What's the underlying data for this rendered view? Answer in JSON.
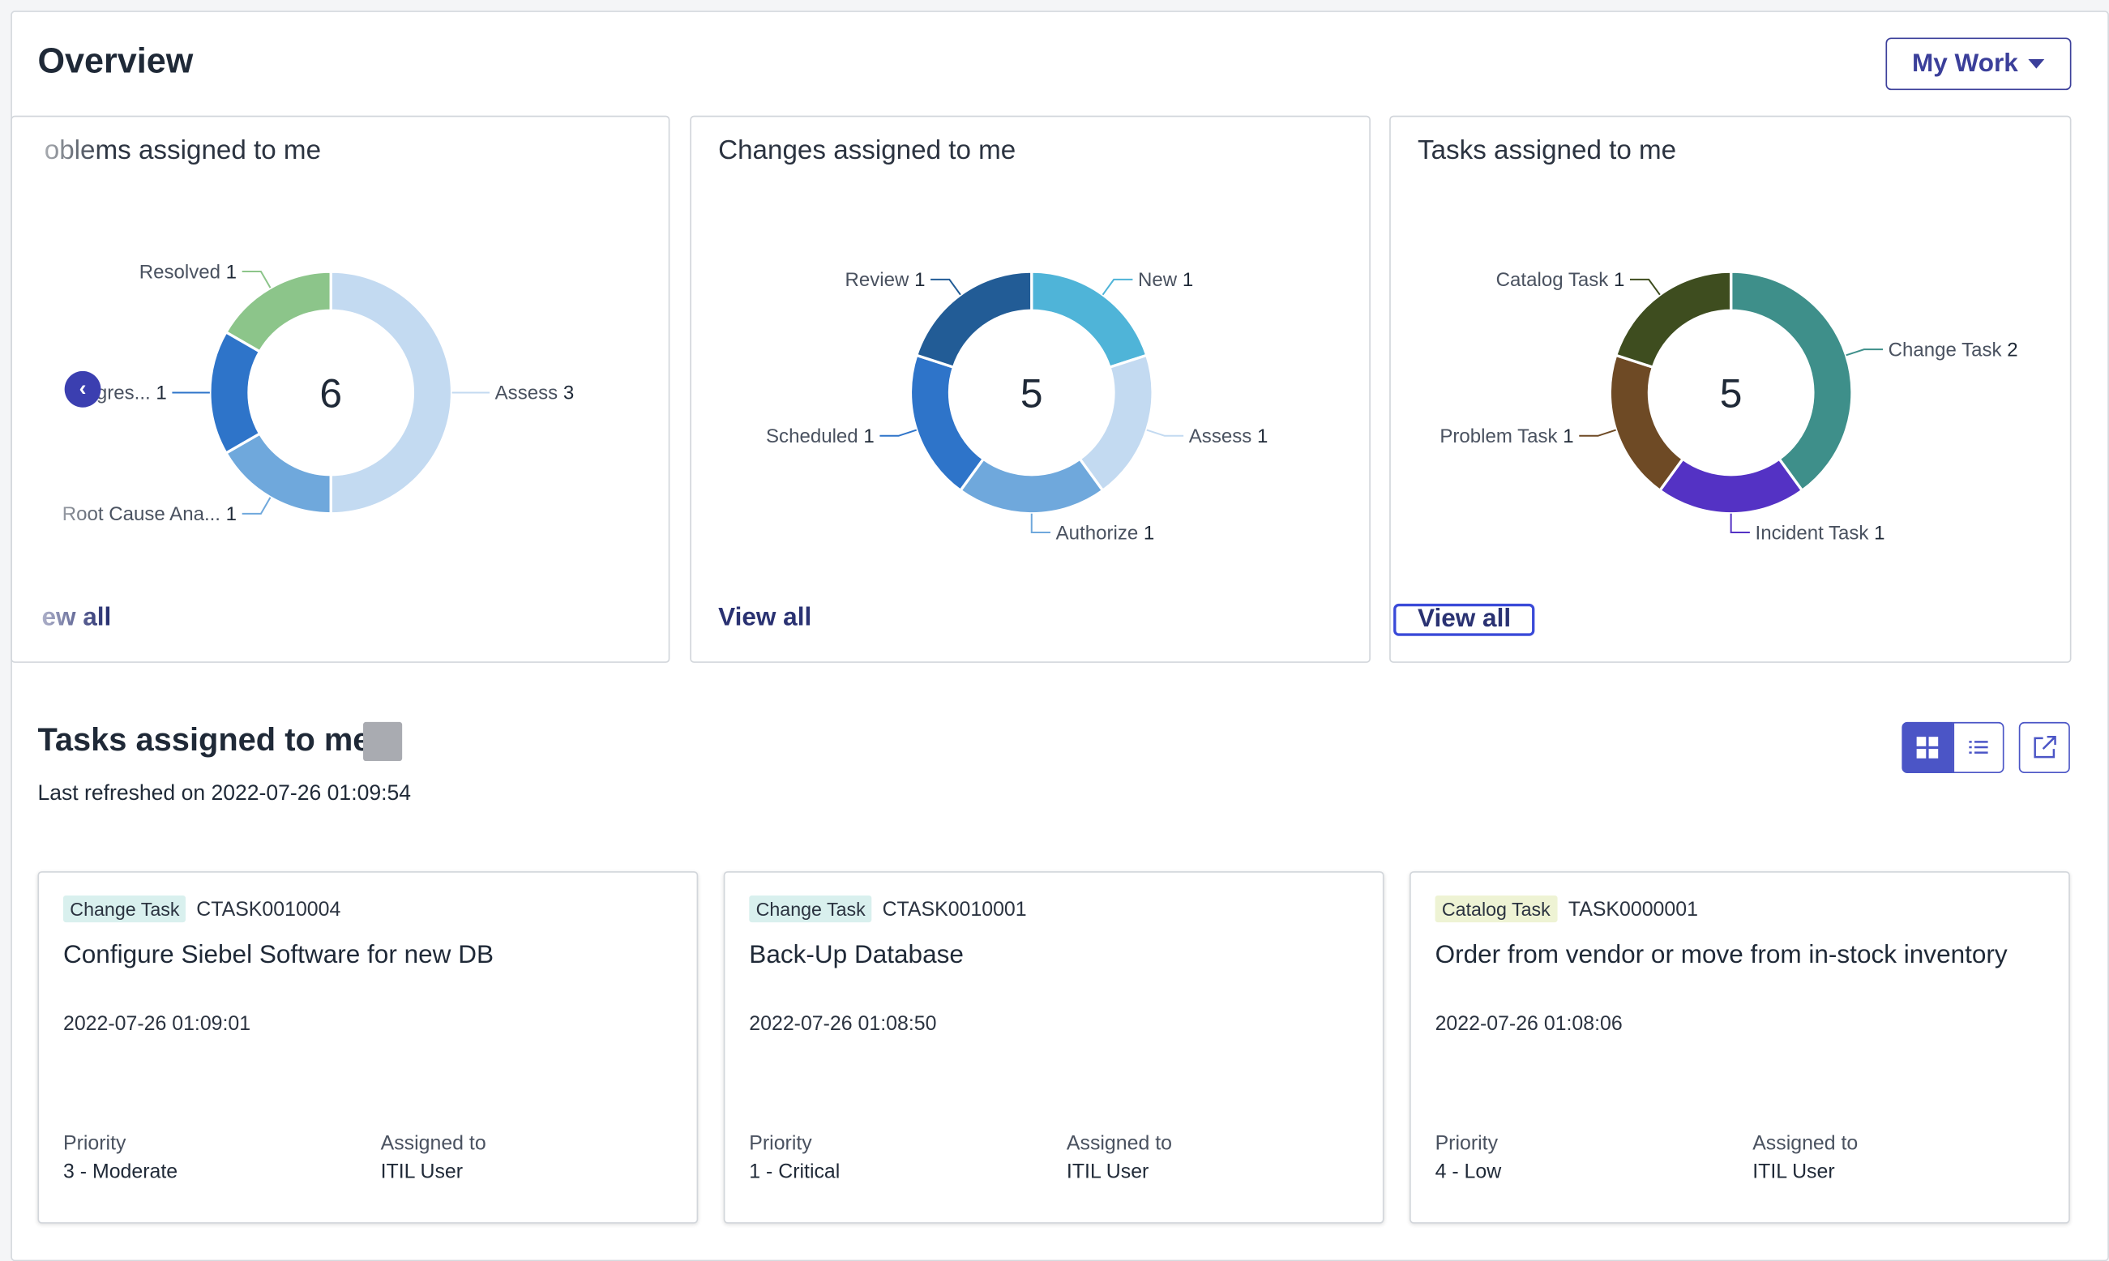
{
  "page": {
    "title": "Overview",
    "filter_button": "My Work"
  },
  "colors": {
    "accent": "#3b3f9a",
    "link": "#2a3272"
  },
  "charts": [
    {
      "title": "Problems assigned to me",
      "title_visible": "oblems assigned to me",
      "view_all": "View all",
      "view_all_visible": "ew all",
      "center_label": "6",
      "left_slice_text": "gres...",
      "left_slice_prefix": "i",
      "slices": [
        {
          "label": "Assess",
          "value": 3,
          "color": "#c3daf1"
        },
        {
          "label": "Root Cause Ana...",
          "value": 1,
          "color": "#6fa8dc"
        },
        {
          "label": "In Progress",
          "value": 1,
          "color": "#2e74c9"
        },
        {
          "label": "Resolved",
          "value": 1,
          "color": "#8cc58a"
        }
      ]
    },
    {
      "title": "Changes assigned to me",
      "view_all": "View all",
      "center_label": "5",
      "slices": [
        {
          "label": "New",
          "value": 1,
          "color": "#4fb4d8"
        },
        {
          "label": "Assess",
          "value": 1,
          "color": "#c3daf1"
        },
        {
          "label": "Authorize",
          "value": 1,
          "color": "#6fa8dc"
        },
        {
          "label": "Scheduled",
          "value": 1,
          "color": "#2e74c9"
        },
        {
          "label": "Review",
          "value": 1,
          "color": "#225c96"
        }
      ]
    },
    {
      "title": "Tasks assigned to me",
      "view_all": "View all",
      "center_label": "5",
      "slices": [
        {
          "label": "Change Task",
          "value": 2,
          "color": "#3e8f8a"
        },
        {
          "label": "Incident Task",
          "value": 1,
          "color": "#5432c4"
        },
        {
          "label": "Problem Task",
          "value": 1,
          "color": "#6e4a25"
        },
        {
          "label": "Catalog Task",
          "value": 1,
          "color": "#3e4d1f"
        }
      ]
    }
  ],
  "tasks_section": {
    "title": "Tasks assigned to me",
    "last_refreshed": "Last refreshed on 2022-07-26 01:09:54",
    "cards": [
      {
        "type": "Change Task",
        "type_color": "#d9f0ee",
        "number": "CTASK0010004",
        "short_description": "Configure Siebel Software for new DB",
        "date": "2022-07-26 01:09:01",
        "priority_label": "Priority",
        "priority": "3 - Moderate",
        "assigned_label": "Assigned to",
        "assigned_to": "ITIL User"
      },
      {
        "type": "Change Task",
        "type_color": "#d9f0ee",
        "number": "CTASK0010001",
        "short_description": "Back-Up Database",
        "date": "2022-07-26 01:08:50",
        "priority_label": "Priority",
        "priority": "1 - Critical",
        "assigned_label": "Assigned to",
        "assigned_to": "ITIL User"
      },
      {
        "type": "Catalog Task",
        "type_color": "#eef3d4",
        "number": "TASK0000001",
        "short_description": "Order from vendor or move from in-stock inventory",
        "date": "2022-07-26 01:08:06",
        "priority_label": "Priority",
        "priority": "4 - Low",
        "assigned_label": "Assigned to",
        "assigned_to": "ITIL User"
      }
    ]
  }
}
